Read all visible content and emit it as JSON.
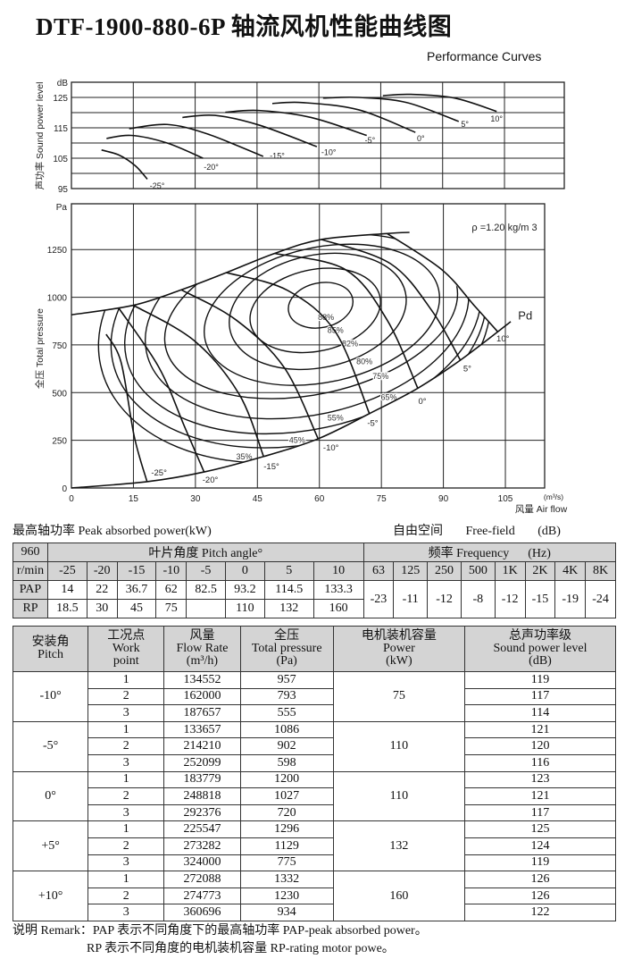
{
  "title": "DTF-1900-880-6P 轴流风机性能曲线图",
  "subtitle": "Performance Curves",
  "chart_data": [
    {
      "type": "line",
      "ylabel": "声功率 Sound power level",
      "yunit": "dB",
      "xlim": [
        0,
        119.5
      ],
      "ylim": [
        95,
        130
      ],
      "yticks": [
        95,
        105,
        115,
        125
      ],
      "ygrid": [
        100,
        105,
        110,
        115,
        120,
        125
      ],
      "xgrid": [
        15,
        30,
        45,
        60,
        75,
        90,
        105
      ],
      "grid": true,
      "series": [
        {
          "name": "-25°",
          "points": [
            [
              7.3,
              107.7
            ],
            [
              11.6,
              106
            ],
            [
              15.5,
              102.5
            ],
            [
              18.4,
              98.1
            ]
          ],
          "label_at": [
            20.8,
            96.2
          ]
        },
        {
          "name": "-20°",
          "points": [
            [
              8.5,
              111.5
            ],
            [
              14.5,
              112.5
            ],
            [
              23.2,
              110
            ],
            [
              31.9,
              105
            ]
          ],
          "label_at": [
            33.9,
            102.3
          ]
        },
        {
          "name": "-15°",
          "points": [
            [
              14,
              114.7
            ],
            [
              23.2,
              116.1
            ],
            [
              32.9,
              113
            ],
            [
              46.5,
              105.6
            ]
          ],
          "label_at": [
            49.9,
            106
          ]
        },
        {
          "name": "-10°",
          "points": [
            [
              26.9,
              118.4
            ],
            [
              34.8,
              119.1
            ],
            [
              45.5,
              115.9
            ],
            [
              59.5,
              108.8
            ]
          ],
          "label_at": [
            62.4,
            107.2
          ]
        },
        {
          "name": "-5°",
          "points": [
            [
              37.3,
              120.1
            ],
            [
              45.5,
              120.7
            ],
            [
              58.1,
              118.4
            ],
            [
              71.6,
              112.5
            ]
          ],
          "label_at": [
            72.4,
            111.2
          ]
        },
        {
          "name": "0°",
          "points": [
            [
              48.7,
              123
            ],
            [
              56.1,
              123.3
            ],
            [
              69.7,
              120.9
            ],
            [
              83.4,
              113.5
            ]
          ],
          "label_at": [
            84.7,
            111.8
          ]
        },
        {
          "name": "5°",
          "points": [
            [
              61,
              124.8
            ],
            [
              69.7,
              125
            ],
            [
              81.3,
              123.3
            ],
            [
              93.9,
              117.1
            ]
          ],
          "label_at": [
            95.4,
            116.4
          ]
        },
        {
          "name": "10°",
          "points": [
            [
              75.5,
              125.6
            ],
            [
              82.3,
              126
            ],
            [
              92.9,
              124.8
            ],
            [
              103.1,
              120.4
            ]
          ],
          "label_at": [
            103.1,
            118.2
          ]
        }
      ]
    },
    {
      "type": "line",
      "ylabel": "全压 Total pressure",
      "yunit": "Pa",
      "xlabel": "风量 Air flow",
      "xunit": "(m³/s)",
      "xlim": [
        0,
        114.5
      ],
      "ylim": [
        0,
        1490
      ],
      "xticks": [
        0,
        15,
        30,
        45,
        60,
        75,
        90,
        105
      ],
      "yticks": [
        0,
        250,
        500,
        750,
        1000,
        1250
      ],
      "grid": true,
      "density_note": "ρ =1.20 kg/m 3",
      "pd_label": "Pd",
      "stall_line": [
        [
          0,
          908
        ],
        [
          15,
          958
        ],
        [
          26.6,
          1039
        ],
        [
          37.5,
          1129
        ],
        [
          49.2,
          1230
        ],
        [
          60.5,
          1303
        ],
        [
          76.4,
          1334
        ],
        [
          81.8,
          1340
        ]
      ],
      "pd_line": [
        [
          0,
          0
        ],
        [
          18.3,
          33
        ],
        [
          32.1,
          84
        ],
        [
          46.5,
          165
        ],
        [
          59.7,
          258
        ],
        [
          72.1,
          390
        ],
        [
          83.8,
          523
        ],
        [
          94.1,
          670
        ],
        [
          106.3,
          872
        ]
      ],
      "pd_label_at": [
        109.8,
        903
      ],
      "pitch_curves": [
        {
          "name": "-25°",
          "points": [
            [
              8.4,
              806
            ],
            [
              12,
              660
            ],
            [
              15.2,
              270
            ],
            [
              18.3,
              33
            ]
          ],
          "label_at": [
            21.2,
            84
          ]
        },
        {
          "name": "-20°",
          "points": [
            [
              11.5,
              942
            ],
            [
              21.2,
              631
            ],
            [
              27.4,
              320
            ],
            [
              32.1,
              84
            ]
          ],
          "label_at": [
            33.6,
            48
          ]
        },
        {
          "name": "-15°",
          "points": [
            [
              15,
              958
            ],
            [
              29.8,
              771
            ],
            [
              40.6,
              491
            ],
            [
              46.5,
              165
            ]
          ],
          "label_at": [
            48.4,
            118
          ]
        },
        {
          "name": "-10°",
          "points": [
            [
              26.6,
              1039
            ],
            [
              39.9,
              880
            ],
            [
              51.5,
              631
            ],
            [
              59.7,
              258
            ]
          ],
          "label_at": [
            62.8,
            215
          ]
        },
        {
          "name": "-5°",
          "points": [
            [
              37.5,
              1129
            ],
            [
              52.3,
              1036
            ],
            [
              63.9,
              818
            ],
            [
              72.1,
              390
            ]
          ],
          "label_at": [
            72.9,
            344
          ]
        },
        {
          "name": "0°",
          "points": [
            [
              49.2,
              1230
            ],
            [
              66.3,
              1145
            ],
            [
              76.4,
              880
            ],
            [
              83.8,
              523
            ]
          ],
          "label_at": [
            84.9,
            460
          ]
        },
        {
          "name": "5°",
          "points": [
            [
              60.5,
              1303
            ],
            [
              77.2,
              1176
            ],
            [
              87.3,
              927
            ],
            [
              94.1,
              670
            ]
          ],
          "label_at": [
            95.8,
            631
          ]
        },
        {
          "name": "10°",
          "points": [
            [
              76.4,
              1334
            ],
            [
              89.6,
              1145
            ],
            [
              97.4,
              958
            ],
            [
              103.2,
              818
            ]
          ],
          "label_at": [
            104.4,
            787
          ]
        }
      ],
      "efficiency_contours": [
        {
          "name": "88%",
          "center": [
            60.3,
            958
          ],
          "rx": 7.9,
          "ry": 117,
          "label_at": [
            61.6,
            896
          ]
        },
        {
          "name": "85%",
          "center": [
            59,
            931
          ],
          "rx": 16,
          "ry": 214,
          "label_at": [
            63.9,
            826
          ]
        },
        {
          "name": "82%",
          "center": [
            59.6,
            926
          ],
          "rx": 21.7,
          "ry": 295,
          "label_at": [
            67.4,
            756
          ]
        },
        {
          "name": "80%",
          "center": [
            60.6,
            908
          ],
          "rx": 28.9,
          "ry": 354,
          "label_at": [
            70.9,
            663
          ]
        },
        {
          "name": "75%",
          "center": [
            58,
            900
          ],
          "rx": 36,
          "ry": 409,
          "label_at": [
            74.8,
            585
          ]
        },
        {
          "name": "65%",
          "center": [
            57,
            890
          ],
          "rx": 39.7,
          "ry": 507,
          "label_at": [
            76.8,
            476
          ]
        },
        {
          "name": "55%",
          "center": [
            56,
            880
          ],
          "rx": 43.7,
          "ry": 575,
          "label_at": [
            63.9,
            367
          ]
        },
        {
          "name": "45%",
          "center": [
            55,
            870
          ],
          "rx": 46,
          "ry": 640,
          "label_at": [
            54.6,
            250
          ]
        },
        {
          "name": "35%",
          "center": [
            54,
            860
          ],
          "rx": 48,
          "ry": 711,
          "label_at": [
            41.8,
            165
          ]
        }
      ]
    }
  ],
  "captions": {
    "peak_power": "最高轴功率 Peak absorbed power(kW)",
    "free_field_cn": "自由空间",
    "free_field_en": "Free-field",
    "unit_db": "(dB)"
  },
  "table1": {
    "speed": "960",
    "speed_unit": "r/min",
    "pitch_header": "叶片角度 Pitch angle°",
    "freq_header": "频率 Frequency      (Hz)",
    "pitches": [
      "-25",
      "-20",
      "-15",
      "-10",
      "-5",
      "0",
      "5",
      "10"
    ],
    "freqs": [
      "63",
      "125",
      "250",
      "500",
      "1K",
      "2K",
      "4K",
      "8K"
    ],
    "pap_label": "PAP",
    "rp_label": "RP",
    "pap": [
      "14",
      "22",
      "36.7",
      "62",
      "82.5",
      "93.2",
      "114.5",
      "133.3"
    ],
    "rp": [
      "18.5",
      "30",
      "45",
      "75",
      "",
      "110",
      "132",
      "160"
    ],
    "freq_corrections": [
      "-23",
      "-11",
      "-12",
      "-8",
      "-12",
      "-15",
      "-19",
      "-24"
    ]
  },
  "table2": {
    "headers": [
      {
        "cn": "安装角",
        "en": "Pitch",
        "en2": ""
      },
      {
        "cn": "工况点",
        "en": "Work",
        "en2": "point"
      },
      {
        "cn": "风量",
        "en": "Flow Rate",
        "en2": "(m³/h)"
      },
      {
        "cn": "全压",
        "en": "Total pressure",
        "en2": "(Pa)"
      },
      {
        "cn": "电机装机容量",
        "en": "Power",
        "en2": "(kW)"
      },
      {
        "cn": "总声功率级",
        "en": "Sound power level",
        "en2": "(dB)"
      }
    ],
    "groups": [
      {
        "pitch": "-10°",
        "power": "75",
        "rows": [
          [
            "1",
            "134552",
            "957",
            "119"
          ],
          [
            "2",
            "162000",
            "793",
            "117"
          ],
          [
            "3",
            "187657",
            "555",
            "114"
          ]
        ]
      },
      {
        "pitch": "-5°",
        "power": "110",
        "rows": [
          [
            "1",
            "133657",
            "1086",
            "121"
          ],
          [
            "2",
            "214210",
            "902",
            "120"
          ],
          [
            "3",
            "252099",
            "598",
            "116"
          ]
        ]
      },
      {
        "pitch": "0°",
        "power": "110",
        "rows": [
          [
            "1",
            "183779",
            "1200",
            "123"
          ],
          [
            "2",
            "248818",
            "1027",
            "121"
          ],
          [
            "3",
            "292376",
            "720",
            "117"
          ]
        ]
      },
      {
        "pitch": "+5°",
        "power": "132",
        "rows": [
          [
            "1",
            "225547",
            "1296",
            "125"
          ],
          [
            "2",
            "273282",
            "1129",
            "124"
          ],
          [
            "3",
            "324000",
            "775",
            "119"
          ]
        ]
      },
      {
        "pitch": "+10°",
        "power": "160",
        "rows": [
          [
            "1",
            "272088",
            "1332",
            "126"
          ],
          [
            "2",
            "274773",
            "1230",
            "126"
          ],
          [
            "3",
            "360696",
            "934",
            "122"
          ]
        ]
      }
    ]
  },
  "remark": {
    "line1": "说明 Remark：PAP 表示不同角度下的最高轴功率 PAP-peak absorbed power。",
    "line2": "RP 表示不同角度的电机装机容量 RP-rating motor powe。"
  }
}
